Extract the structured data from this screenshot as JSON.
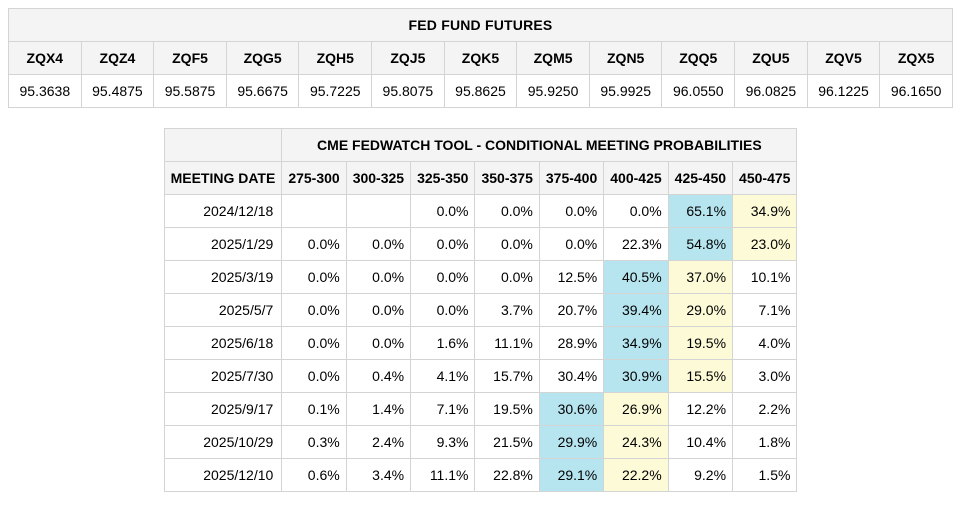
{
  "page_background": "#ffffff",
  "border_color": "#d4d4d4",
  "header_bg": "#f4f4f4",
  "highlight_blue": "#b6e5ef",
  "highlight_yellow": "#fdfad7",
  "font_family": "Arial",
  "base_fontsize": 14,
  "futures": {
    "title": "FED FUND FUTURES",
    "codes": [
      "ZQX4",
      "ZQZ4",
      "ZQF5",
      "ZQG5",
      "ZQH5",
      "ZQJ5",
      "ZQK5",
      "ZQM5",
      "ZQN5",
      "ZQQ5",
      "ZQU5",
      "ZQV5",
      "ZQX5"
    ],
    "values": [
      "95.3638",
      "95.4875",
      "95.5875",
      "95.6675",
      "95.7225",
      "95.8075",
      "95.8625",
      "95.9250",
      "95.9925",
      "96.0550",
      "96.0825",
      "96.1225",
      "96.1650"
    ]
  },
  "probabilities": {
    "title": "CME FEDWATCH TOOL - CONDITIONAL MEETING PROBABILITIES",
    "date_header": "MEETING DATE",
    "buckets": [
      "275-300",
      "300-325",
      "325-350",
      "350-375",
      "375-400",
      "400-425",
      "425-450",
      "450-475"
    ],
    "rows": [
      {
        "date": "2024/12/18",
        "cells": [
          "",
          "",
          "0.0%",
          "0.0%",
          "0.0%",
          "0.0%",
          "65.1%",
          "34.9%"
        ],
        "hl": [
          "",
          "",
          "",
          "",
          "",
          "",
          "blue",
          "yellow"
        ]
      },
      {
        "date": "2025/1/29",
        "cells": [
          "0.0%",
          "0.0%",
          "0.0%",
          "0.0%",
          "0.0%",
          "22.3%",
          "54.8%",
          "23.0%"
        ],
        "hl": [
          "",
          "",
          "",
          "",
          "",
          "",
          "blue",
          "yellow"
        ]
      },
      {
        "date": "2025/3/19",
        "cells": [
          "0.0%",
          "0.0%",
          "0.0%",
          "0.0%",
          "12.5%",
          "40.5%",
          "37.0%",
          "10.1%"
        ],
        "hl": [
          "",
          "",
          "",
          "",
          "",
          "blue",
          "yellow",
          ""
        ]
      },
      {
        "date": "2025/5/7",
        "cells": [
          "0.0%",
          "0.0%",
          "0.0%",
          "3.7%",
          "20.7%",
          "39.4%",
          "29.0%",
          "7.1%"
        ],
        "hl": [
          "",
          "",
          "",
          "",
          "",
          "blue",
          "yellow",
          ""
        ]
      },
      {
        "date": "2025/6/18",
        "cells": [
          "0.0%",
          "0.0%",
          "1.6%",
          "11.1%",
          "28.9%",
          "34.9%",
          "19.5%",
          "4.0%"
        ],
        "hl": [
          "",
          "",
          "",
          "",
          "",
          "blue",
          "yellow",
          ""
        ]
      },
      {
        "date": "2025/7/30",
        "cells": [
          "0.0%",
          "0.4%",
          "4.1%",
          "15.7%",
          "30.4%",
          "30.9%",
          "15.5%",
          "3.0%"
        ],
        "hl": [
          "",
          "",
          "",
          "",
          "",
          "blue",
          "yellow",
          ""
        ]
      },
      {
        "date": "2025/9/17",
        "cells": [
          "0.1%",
          "1.4%",
          "7.1%",
          "19.5%",
          "30.6%",
          "26.9%",
          "12.2%",
          "2.2%"
        ],
        "hl": [
          "",
          "",
          "",
          "",
          "blue",
          "yellow",
          "",
          ""
        ]
      },
      {
        "date": "2025/10/29",
        "cells": [
          "0.3%",
          "2.4%",
          "9.3%",
          "21.5%",
          "29.9%",
          "24.3%",
          "10.4%",
          "1.8%"
        ],
        "hl": [
          "",
          "",
          "",
          "",
          "blue",
          "yellow",
          "",
          ""
        ]
      },
      {
        "date": "2025/12/10",
        "cells": [
          "0.6%",
          "3.4%",
          "11.1%",
          "22.8%",
          "29.1%",
          "22.2%",
          "9.2%",
          "1.5%"
        ],
        "hl": [
          "",
          "",
          "",
          "",
          "blue",
          "yellow",
          "",
          ""
        ]
      }
    ]
  }
}
